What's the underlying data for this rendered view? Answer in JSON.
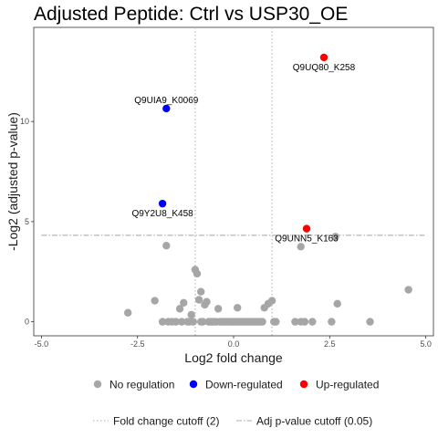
{
  "chart_data": {
    "type": "scatter",
    "title": "Adjusted Peptide: Ctrl vs USP30_OE",
    "xlabel": "Log2 fold change",
    "ylabel": "-Log2 (adjusted p-value)",
    "xlim": [
      -5.2,
      5.2
    ],
    "ylim": [
      -0.7,
      14.7
    ],
    "x_ticks": [
      -5.0,
      -2.5,
      0.0,
      2.5,
      5.0
    ],
    "x_tick_labels": [
      "-5.0",
      "-2.5",
      "0.0",
      "2.5",
      "5.0"
    ],
    "y_ticks": [
      0,
      5,
      10
    ],
    "y_tick_labels": [
      "0",
      "5",
      "10"
    ],
    "grid": false,
    "fold_change_cutoff_x": [
      -1,
      1
    ],
    "adj_p_cutoff_y": 4.32,
    "series": [
      {
        "name": "No regulation",
        "color": "#a6a6a6",
        "points": [
          [
            -2.75,
            0.45
          ],
          [
            -1.85,
            0.0
          ],
          [
            -1.7,
            0.0
          ],
          [
            -1.6,
            0.0
          ],
          [
            -1.5,
            0.0
          ],
          [
            -1.4,
            0.65
          ],
          [
            -1.35,
            0.0
          ],
          [
            -1.3,
            0.95
          ],
          [
            -1.2,
            0.0
          ],
          [
            -1.15,
            0.0
          ],
          [
            -1.1,
            0.35
          ],
          [
            -1.05,
            0.0
          ],
          [
            -1.0,
            2.6
          ],
          [
            -0.95,
            2.4
          ],
          [
            -0.9,
            1.1
          ],
          [
            -0.85,
            1.5
          ],
          [
            -0.85,
            0.0
          ],
          [
            -0.8,
            0.0
          ],
          [
            -0.75,
            0.85
          ],
          [
            -0.7,
            1.0
          ],
          [
            -0.65,
            0.0
          ],
          [
            -0.6,
            0.0
          ],
          [
            -0.55,
            0.0
          ],
          [
            -0.5,
            0.0
          ],
          [
            -0.45,
            0.0
          ],
          [
            -0.4,
            0.65
          ],
          [
            -0.35,
            0.0
          ],
          [
            -0.3,
            0.0
          ],
          [
            -0.25,
            0.0
          ],
          [
            -0.2,
            0.0
          ],
          [
            -0.15,
            0.0
          ],
          [
            -0.1,
            0.0
          ],
          [
            -0.05,
            0.0
          ],
          [
            0.0,
            0.0
          ],
          [
            0.05,
            0.0
          ],
          [
            0.1,
            0.0
          ],
          [
            0.15,
            0.0
          ],
          [
            0.2,
            0.0
          ],
          [
            0.25,
            0.0
          ],
          [
            0.3,
            0.0
          ],
          [
            0.35,
            0.0
          ],
          [
            0.4,
            0.0
          ],
          [
            0.45,
            0.0
          ],
          [
            0.5,
            0.0
          ],
          [
            0.55,
            0.0
          ],
          [
            0.6,
            0.0
          ],
          [
            0.65,
            0.0
          ],
          [
            0.7,
            0.0
          ],
          [
            0.75,
            0.0
          ],
          [
            0.8,
            0.7
          ],
          [
            0.9,
            0.9
          ],
          [
            1.0,
            1.05
          ],
          [
            1.05,
            0.0
          ],
          [
            1.1,
            0.0
          ],
          [
            -2.05,
            1.05
          ],
          [
            0.1,
            0.7
          ],
          [
            1.6,
            0.0
          ],
          [
            1.75,
            0.0
          ],
          [
            1.85,
            0.0
          ],
          [
            2.05,
            0.0
          ],
          [
            2.55,
            0.0
          ],
          [
            2.7,
            0.9
          ],
          [
            3.55,
            0.0
          ],
          [
            4.55,
            1.6
          ],
          [
            -1.75,
            3.8
          ],
          [
            1.75,
            3.75
          ],
          [
            2.65,
            4.25
          ]
        ]
      },
      {
        "name": "Down-regulated",
        "color": "#0000ff",
        "points": [
          [
            -1.75,
            10.65,
            "Q9UIA9_K0069"
          ],
          [
            -1.85,
            5.9,
            "Q9Y2U8_K458"
          ]
        ]
      },
      {
        "name": "Up-regulated",
        "color": "#ff0000",
        "points": [
          [
            2.35,
            13.2,
            "Q9UQ80_K258"
          ],
          [
            1.9,
            4.65,
            "Q9UNN5_K163"
          ]
        ]
      }
    ],
    "legend": {
      "placement": "bottom",
      "point_entries": [
        "No regulation",
        "Down-regulated",
        "Up-regulated"
      ],
      "line_entries": [
        "Fold change cutoff (2)",
        "Adj p-value cutoff (0.05)"
      ]
    }
  }
}
